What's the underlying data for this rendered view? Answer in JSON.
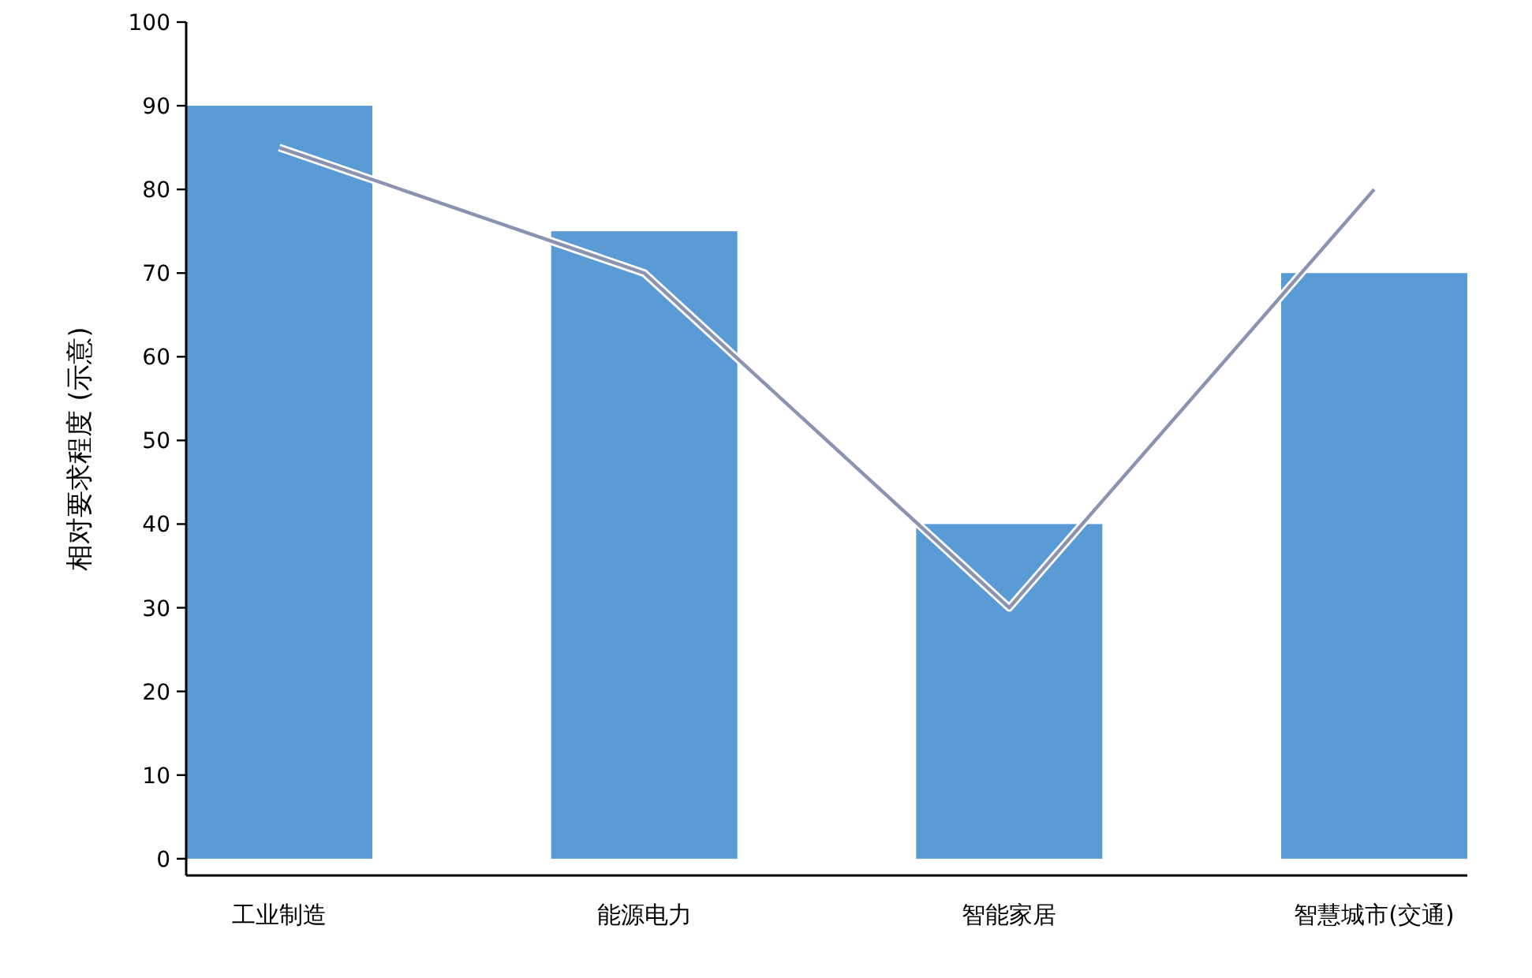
{
  "chart_data": {
    "type": "bar",
    "ylabel": "相对要求程度 (示意)",
    "categories": [
      "工业制造",
      "能源电力",
      "智能家居",
      "智慧城市(交通)"
    ],
    "series": [
      {
        "color": "#5b9bd5",
        "values": [
          90,
          75,
          40,
          70
        ]
      },
      {
        "type": "line",
        "color": "#8a94b0",
        "values": [
          85,
          70,
          30,
          80
        ]
      }
    ],
    "ylim": [
      -2,
      100
    ],
    "yticks": [
      0,
      10,
      20,
      30,
      40,
      50,
      60,
      70,
      80,
      90,
      100
    ],
    "grid": false
  }
}
